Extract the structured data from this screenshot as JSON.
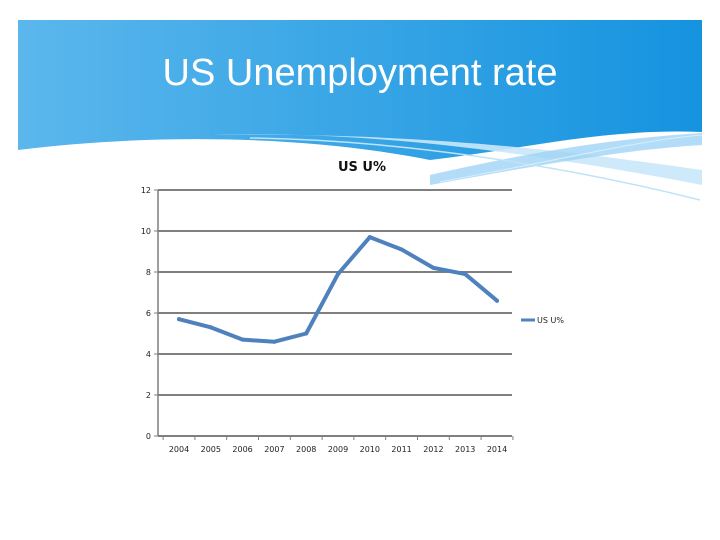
{
  "slide": {
    "title": "US Unemployment rate",
    "accent_color": "#1a8fd8",
    "light_accent": "#9fd3f5"
  },
  "chart_data": {
    "type": "line",
    "title": "US U%",
    "xlabel": "",
    "ylabel": "",
    "categories": [
      "2004",
      "2005",
      "2006",
      "2007",
      "2008",
      "2009",
      "2010",
      "2011",
      "2012",
      "2013",
      "2014"
    ],
    "series": [
      {
        "name": "US U%",
        "color": "#4f81bd",
        "values": [
          5.7,
          5.3,
          4.7,
          4.6,
          5.0,
          7.9,
          9.7,
          9.1,
          8.2,
          7.9,
          6.6
        ]
      }
    ],
    "ylim": [
      0,
      12
    ],
    "yticks": [
      0,
      2,
      4,
      6,
      8,
      10,
      12
    ],
    "grid": true,
    "legend_position": "right"
  }
}
